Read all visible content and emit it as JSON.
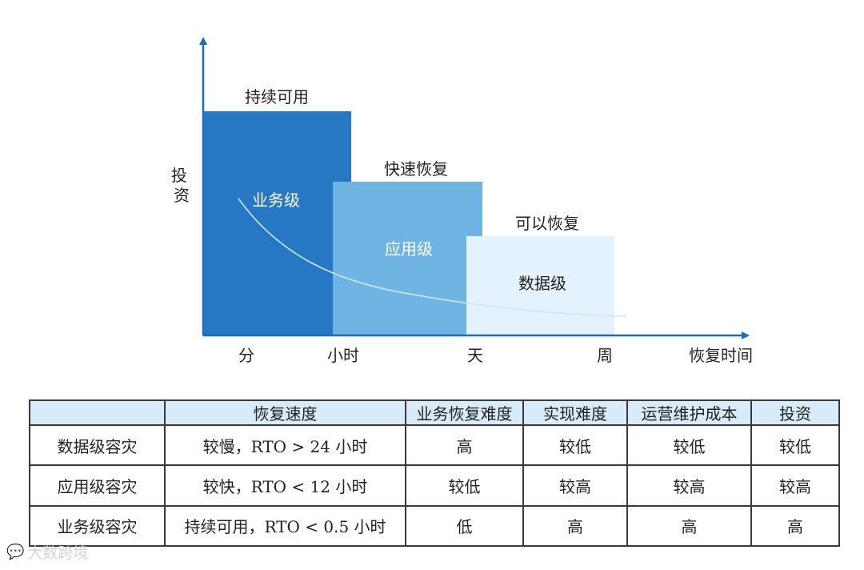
{
  "diagram": {
    "y_axis_label": "投资",
    "x_axis_label": "恢复时间",
    "x_ticks": [
      "分",
      "小时",
      "天",
      "周"
    ],
    "tiers": [
      {
        "header": "持续可用",
        "name": "业务级",
        "color": "#2678c5"
      },
      {
        "header": "快速恢复",
        "name": "应用级",
        "color": "#6eb5e3"
      },
      {
        "header": "可以恢复",
        "name": "数据级",
        "color": "#e3f2fc"
      }
    ],
    "axis_color": "#1e6db8",
    "curve_color": "#cfe6f7"
  },
  "table": {
    "headers": [
      "",
      "恢复速度",
      "业务恢复难度",
      "实现难度",
      "运营维护成本",
      "投资"
    ],
    "rows": [
      [
        "数据级容灾",
        "较慢，RTO > 24 小时",
        "高",
        "较低",
        "较低",
        "较低"
      ],
      [
        "应用级容灾",
        "较快，RTO < 12 小时",
        "较低",
        "较高",
        "较高",
        "较高"
      ],
      [
        "业务级容灾",
        "持续可用，RTO < 0.5 小时",
        "低",
        "高",
        "高",
        "高"
      ]
    ]
  },
  "watermark": {
    "text": "大数跨境"
  }
}
